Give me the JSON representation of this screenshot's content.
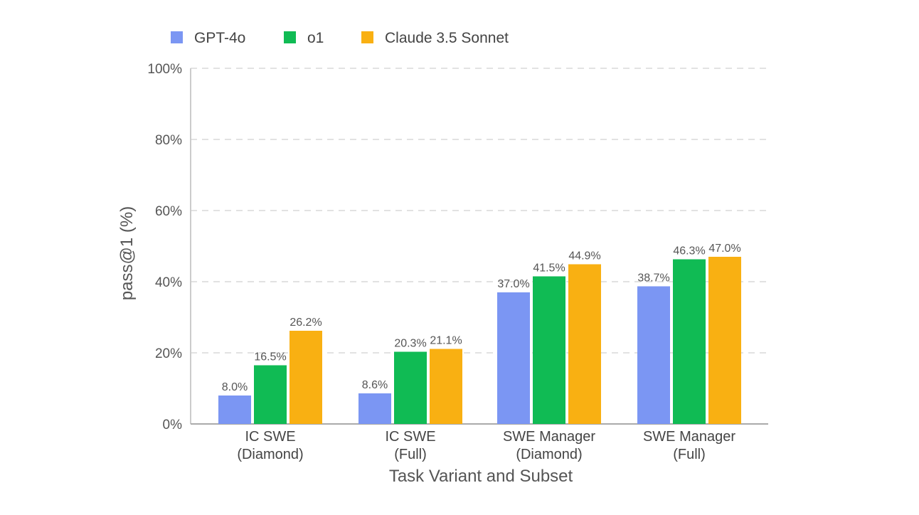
{
  "chart_data": {
    "type": "bar",
    "title": "",
    "xlabel": "Task Variant and Subset",
    "ylabel": "pass@1 (%)",
    "ylim": [
      0,
      100
    ],
    "y_ticks": [
      0,
      20,
      40,
      60,
      80,
      100
    ],
    "y_tick_labels": [
      "0%",
      "20%",
      "40%",
      "60%",
      "80%",
      "100%"
    ],
    "grid": true,
    "legend_position": "top-left",
    "categories": [
      [
        "IC SWE",
        "(Diamond)"
      ],
      [
        "IC SWE",
        "(Full)"
      ],
      [
        "SWE Manager",
        "(Diamond)"
      ],
      [
        "SWE Manager",
        "(Full)"
      ]
    ],
    "series": [
      {
        "name": "GPT-4o",
        "color": "#7b96f3",
        "values": [
          8.0,
          8.6,
          37.0,
          38.7
        ],
        "labels": [
          "8.0%",
          "8.6%",
          "37.0%",
          "38.7%"
        ]
      },
      {
        "name": "o1",
        "color": "#10bb54",
        "values": [
          16.5,
          20.3,
          41.5,
          46.3
        ],
        "labels": [
          "16.5%",
          "20.3%",
          "41.5%",
          "46.3%"
        ]
      },
      {
        "name": "Claude 3.5 Sonnet",
        "color": "#f9b012",
        "values": [
          26.2,
          21.1,
          44.9,
          47.0
        ],
        "labels": [
          "26.2%",
          "21.1%",
          "44.9%",
          "47.0%"
        ]
      }
    ]
  }
}
